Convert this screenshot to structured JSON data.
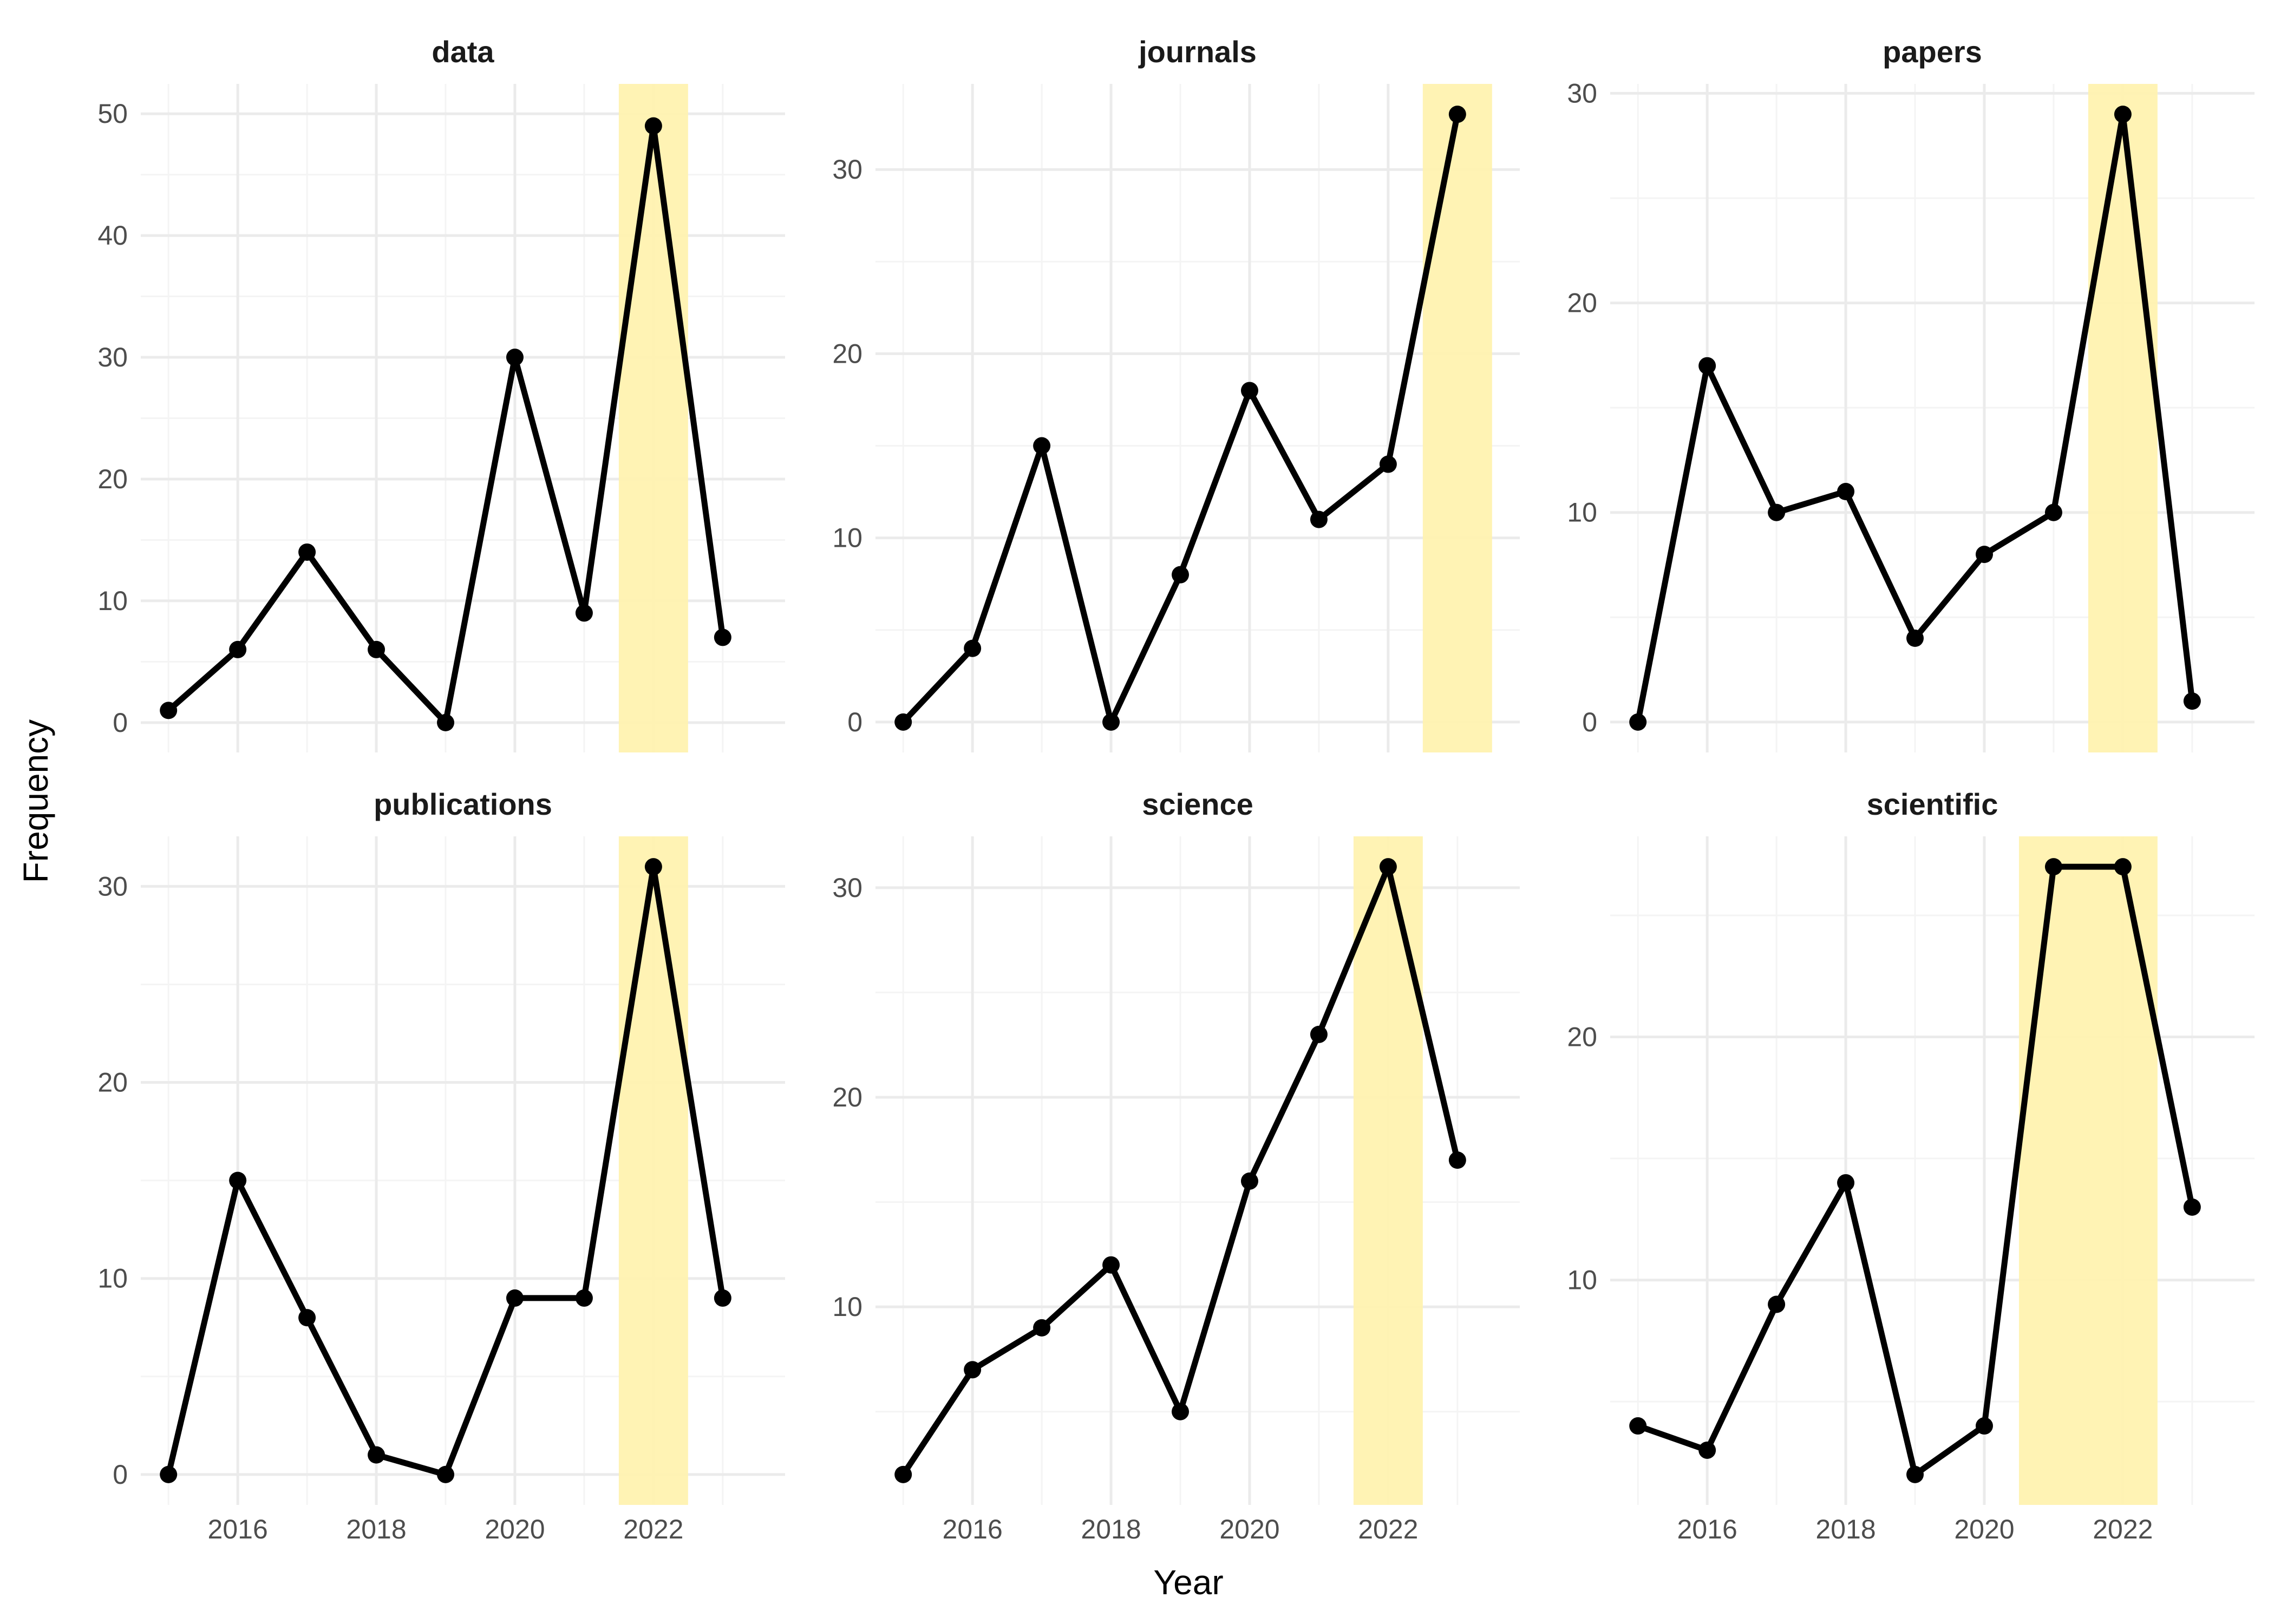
{
  "figure": {
    "xlabel": "Year",
    "ylabel": "Frequency"
  },
  "colors": {
    "line": "#000000",
    "highlight": "#fff2b0",
    "grid_major": "#ebebeb",
    "grid_minor": "#f4f4f4"
  },
  "chart_data": [
    {
      "type": "line",
      "title": "data",
      "x": [
        2015,
        2016,
        2017,
        2018,
        2019,
        2020,
        2021,
        2022,
        2023
      ],
      "values": [
        1,
        6,
        14,
        6,
        0,
        30,
        9,
        49,
        7
      ],
      "ylim": [
        -2.45,
        52.45
      ],
      "yticks": [
        0,
        10,
        20,
        30,
        40,
        50
      ],
      "highlight": [
        2021.5,
        2022.5
      ]
    },
    {
      "type": "line",
      "title": "journals",
      "x": [
        2015,
        2016,
        2017,
        2018,
        2019,
        2020,
        2021,
        2022,
        2023
      ],
      "values": [
        0,
        4,
        15,
        0,
        8,
        18,
        11,
        14,
        33
      ],
      "ylim": [
        -1.65,
        34.65
      ],
      "yticks": [
        0,
        10,
        20,
        30
      ],
      "highlight": [
        2022.5,
        2023.5
      ]
    },
    {
      "type": "line",
      "title": "papers",
      "x": [
        2015,
        2016,
        2017,
        2018,
        2019,
        2020,
        2021,
        2022,
        2023
      ],
      "values": [
        0,
        17,
        10,
        11,
        4,
        8,
        10,
        29,
        1
      ],
      "ylim": [
        -1.45,
        30.45
      ],
      "yticks": [
        0,
        10,
        20,
        30
      ],
      "highlight": [
        2021.5,
        2022.5
      ]
    },
    {
      "type": "line",
      "title": "publications",
      "x": [
        2015,
        2016,
        2017,
        2018,
        2019,
        2020,
        2021,
        2022,
        2023
      ],
      "values": [
        0,
        15,
        8,
        1,
        0,
        9,
        9,
        31,
        9
      ],
      "ylim": [
        -1.55,
        32.55
      ],
      "yticks": [
        0,
        10,
        20,
        30
      ],
      "highlight": [
        2021.5,
        2022.5
      ]
    },
    {
      "type": "line",
      "title": "science",
      "x": [
        2015,
        2016,
        2017,
        2018,
        2019,
        2020,
        2021,
        2022,
        2023
      ],
      "values": [
        2,
        7,
        9,
        12,
        5,
        16,
        23,
        31,
        17
      ],
      "ylim": [
        0.55,
        32.45
      ],
      "yticks": [
        10,
        20,
        30
      ],
      "highlight": [
        2021.5,
        2022.5
      ]
    },
    {
      "type": "line",
      "title": "scientific",
      "x": [
        2015,
        2016,
        2017,
        2018,
        2019,
        2020,
        2021,
        2022,
        2023
      ],
      "values": [
        4,
        3,
        9,
        14,
        2,
        4,
        27,
        27,
        13
      ],
      "ylim": [
        0.75,
        28.25
      ],
      "yticks": [
        10,
        20
      ],
      "highlight": [
        2020.5,
        2022.5
      ]
    }
  ],
  "xaxis": {
    "xlim": [
      2014.6,
      2023.9
    ],
    "xticks": [
      2016,
      2018,
      2020,
      2022
    ]
  }
}
